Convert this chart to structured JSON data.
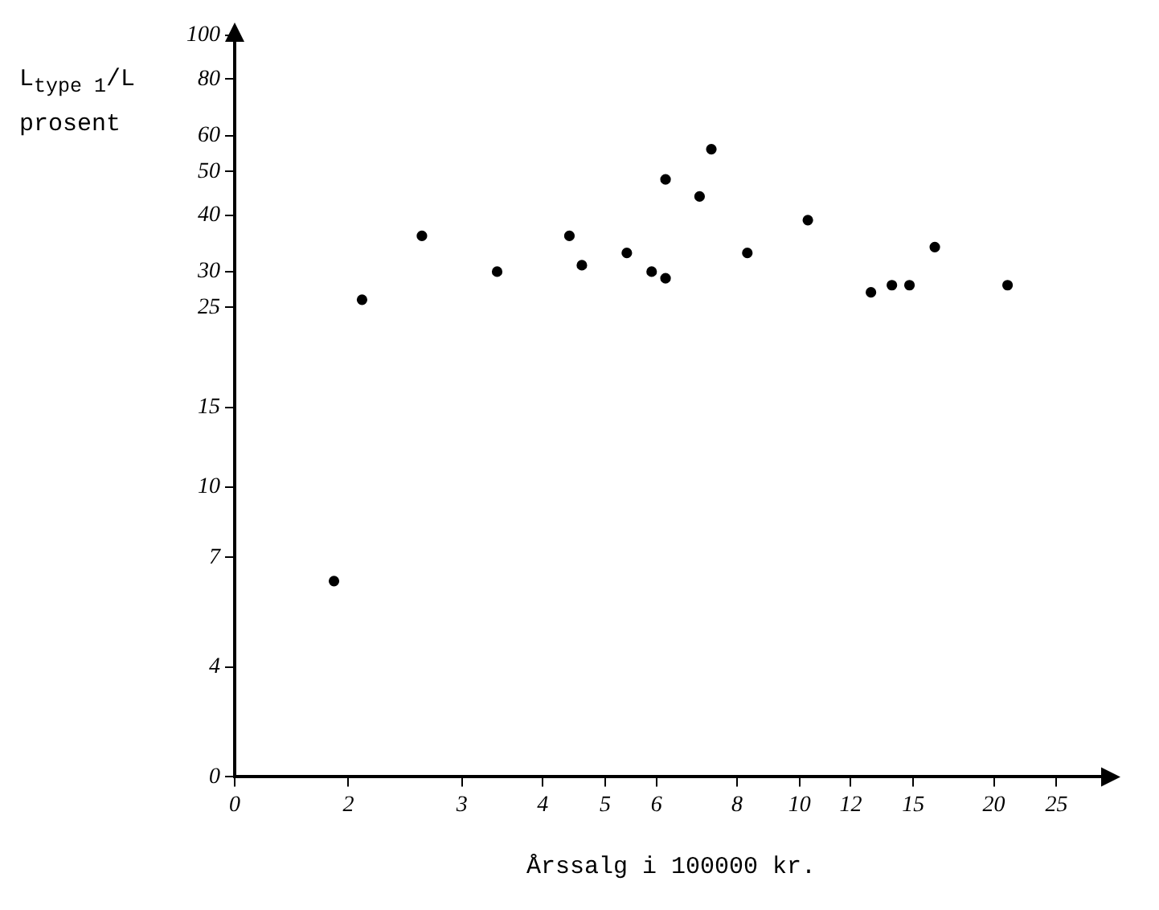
{
  "chart_data": {
    "type": "scatter",
    "xlabel": "Årssalg i 100000 kr.",
    "ylabel": "L$_{type 1}$/L prosent",
    "x": [
      1.9,
      2.1,
      2.6,
      3.4,
      4.4,
      4.6,
      5.4,
      5.9,
      6.2,
      6.2,
      7.0,
      7.3,
      8.3,
      10.3,
      12.9,
      13.9,
      14.8,
      16.2,
      21
    ],
    "values": [
      6.2,
      26,
      36,
      30,
      36,
      31,
      33,
      30,
      48,
      29,
      44,
      56,
      33,
      39,
      27,
      28,
      28,
      34,
      28
    ],
    "color": "#000000",
    "marker": "circle",
    "log": "xy",
    "grid": false,
    "legend": false,
    "xlim": [
      0,
      30
    ],
    "xticks": [
      0,
      2,
      3,
      4,
      5,
      6,
      8,
      10,
      12,
      15,
      20,
      25
    ],
    "ylim": [
      0,
      100
    ],
    "yticks": [
      0,
      4,
      7,
      10,
      15,
      25,
      30,
      40,
      50,
      60,
      80,
      100
    ]
  }
}
